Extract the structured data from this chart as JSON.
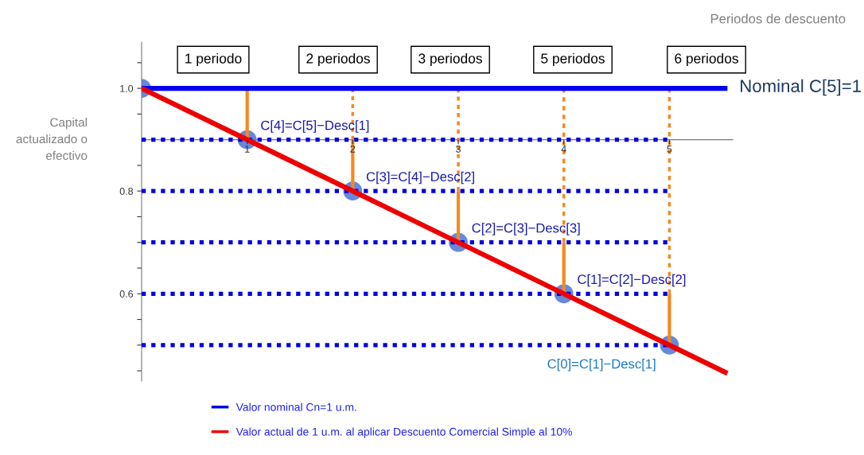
{
  "chart_data": {
    "type": "line",
    "xlabel": "Periodos de descuento",
    "ylabel": "Capital actualizado o efectivo",
    "xlim": [
      0,
      5.6
    ],
    "ylim": [
      0.43,
      1.09
    ],
    "xticks": [
      1,
      2,
      3,
      4,
      5
    ],
    "yticks": [
      {
        "value": 0.45,
        "label": null
      },
      {
        "value": 0.5,
        "label": null
      },
      {
        "value": 0.55,
        "label": null
      },
      0.6,
      {
        "value": 0.65,
        "label": null
      },
      {
        "value": 0.7,
        "label": null
      },
      {
        "value": 0.75,
        "label": null
      },
      0.8,
      {
        "value": 0.85,
        "label": null
      },
      {
        "value": 0.95,
        "label": null
      },
      {
        "value": 1.0,
        "label": "1.0"
      },
      {
        "value": 1.05,
        "label": null
      }
    ],
    "grid": false,
    "legend": "bottom",
    "series": [
      {
        "line_style": "dotted",
        "color": "#0000dd",
        "x": [
          0,
          5
        ],
        "values": [
          0.9,
          0.9
        ]
      },
      {
        "line_style": "dotted",
        "color": "#0000dd",
        "x": [
          0,
          5
        ],
        "values": [
          0.8,
          0.8
        ]
      },
      {
        "line_style": "dotted",
        "color": "#0000dd",
        "x": [
          0,
          5
        ],
        "values": [
          0.7,
          0.7
        ]
      },
      {
        "line_style": "dotted",
        "color": "#0000dd",
        "x": [
          0,
          5
        ],
        "values": [
          0.6,
          0.6
        ]
      },
      {
        "line_style": "dotted",
        "color": "#0000dd",
        "x": [
          0,
          5
        ],
        "values": [
          0.5,
          0.5
        ]
      },
      {
        "line_style": "solid",
        "color": "#f5891f",
        "x": [
          1,
          1
        ],
        "values": [
          0.9,
          1.0
        ]
      },
      {
        "line_style": "solid",
        "color": "#f5891f",
        "x": [
          2,
          2
        ],
        "values": [
          0.8,
          0.9
        ]
      },
      {
        "line_style": "dashed",
        "color": "#f5891f",
        "x": [
          2,
          2
        ],
        "values": [
          0.9,
          1.0
        ]
      },
      {
        "line_style": "solid",
        "color": "#f5891f",
        "x": [
          3,
          3
        ],
        "values": [
          0.7,
          0.8
        ]
      },
      {
        "line_style": "dashed",
        "color": "#f5891f",
        "x": [
          3,
          3
        ],
        "values": [
          0.8,
          1.0
        ]
      },
      {
        "line_style": "solid",
        "color": "#f5891f",
        "x": [
          4,
          4
        ],
        "values": [
          0.6,
          0.7
        ]
      },
      {
        "line_style": "dashed",
        "color": "#f5891f",
        "x": [
          4,
          4
        ],
        "values": [
          0.7,
          1.0
        ]
      },
      {
        "line_style": "solid",
        "color": "#f5891f",
        "x": [
          5,
          5
        ],
        "values": [
          0.5,
          0.6
        ]
      },
      {
        "line_style": "dashed",
        "color": "#f5891f",
        "x": [
          5,
          5
        ],
        "values": [
          0.6,
          1.0
        ]
      },
      {
        "type": "scatter",
        "marker": "circle",
        "color": "#6688dd",
        "x": [
          0,
          1,
          2,
          3,
          4,
          5
        ],
        "values": [
          1.0,
          0.9,
          0.8,
          0.7,
          0.6,
          0.5
        ]
      },
      {
        "name": "Valor nominal Cn=1 u.m.",
        "line_style": "solid",
        "color": "#0000ee",
        "x": [
          0,
          5.55
        ],
        "values": [
          1.0,
          1.0
        ]
      },
      {
        "name": "Valor actual de 1 u.m. al aplicar Descuento Comercial Simple al 10%",
        "line_style": "solid",
        "color": "#ee0000",
        "x": [
          0,
          1,
          2,
          3,
          4,
          5,
          5.55
        ],
        "values": [
          1.0,
          0.9,
          0.8,
          0.7,
          0.6,
          0.5,
          0.445
        ]
      }
    ],
    "annotations": [
      "Nominal C[5]=1",
      "1 periodo",
      "2 periodos",
      "3 periodos",
      "5 periodos",
      "6 periodos",
      {
        "text": "C[4]=C[5]−Desc[1]",
        "x": 1,
        "y": 0.9
      },
      {
        "text": "C[3]=C[4]−Desc[2]",
        "x": 2,
        "y": 0.8
      },
      {
        "text": "C[2]=C[3]−Desc[3]",
        "x": 3,
        "y": 0.7
      },
      {
        "text": "C[1]=C[2]−Desc[2]",
        "x": 4,
        "y": 0.6
      },
      {
        "text": "C[0]=C[1]−Desc[1]",
        "x": 5,
        "y": 0.5
      }
    ]
  }
}
